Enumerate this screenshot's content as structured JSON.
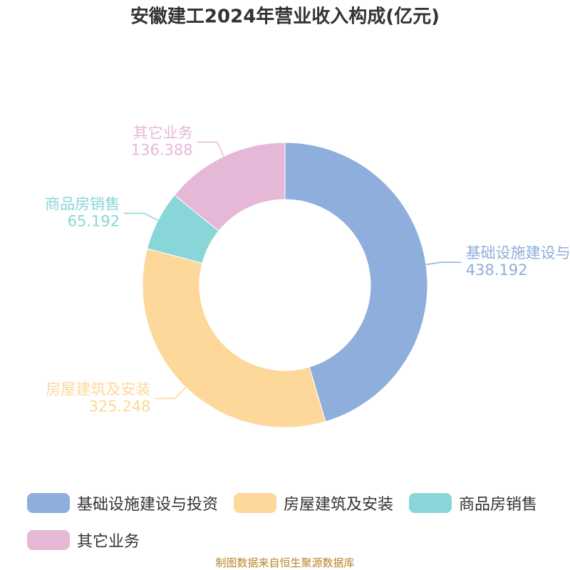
{
  "chart_data": {
    "type": "donut",
    "title": "安徽建工2024年营业收入构成(亿元)",
    "categories": [
      "基础设施建设与投资",
      "房屋建筑及安装",
      "商品房销售",
      "其它业务"
    ],
    "values": [
      438.192,
      325.248,
      65.192,
      136.388
    ],
    "colors": [
      "#8eaedb",
      "#fdd89a",
      "#88d6d8",
      "#e6b8d8"
    ],
    "legend": "bottom",
    "source": "制图数据来自恒生聚源数据库"
  }
}
